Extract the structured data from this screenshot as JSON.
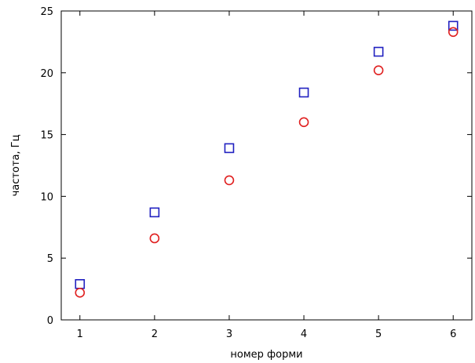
{
  "chart_data": {
    "type": "scatter",
    "title": "",
    "xlabel": "номер форми",
    "ylabel": "частота, Гц",
    "xlim": [
      0.75,
      6.25
    ],
    "ylim": [
      0,
      25
    ],
    "x_ticks": [
      1,
      2,
      3,
      4,
      5,
      6
    ],
    "y_ticks": [
      0,
      5,
      10,
      15,
      20,
      25
    ],
    "grid": false,
    "legend": "none",
    "series": [
      {
        "marker": "square",
        "color": "#2020c0",
        "x": [
          1,
          2,
          3,
          4,
          5,
          6
        ],
        "y": [
          2.9,
          8.7,
          13.9,
          18.4,
          21.7,
          23.8
        ]
      },
      {
        "marker": "circle",
        "color": "#e02020",
        "x": [
          1,
          2,
          3,
          4,
          5,
          6
        ],
        "y": [
          2.2,
          6.6,
          11.3,
          16.0,
          20.2,
          23.3
        ]
      }
    ]
  }
}
